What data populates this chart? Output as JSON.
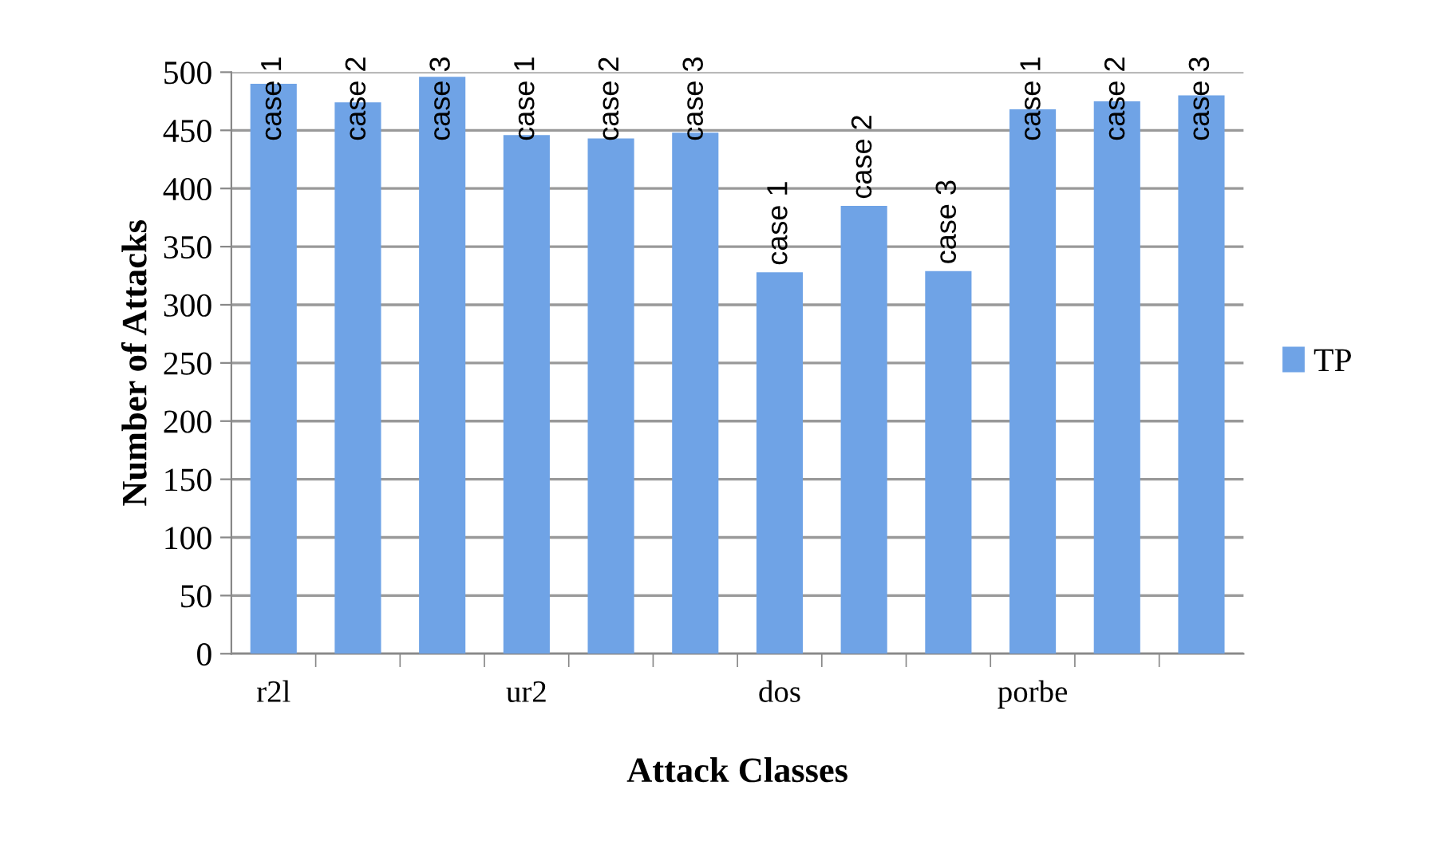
{
  "chart_data": {
    "type": "bar",
    "xlabel": "Attack Classes",
    "ylabel": "Number of Attacks",
    "categories": [
      "r2l",
      null,
      null,
      "ur2",
      null,
      null,
      "dos",
      null,
      null,
      "porbe",
      null,
      null
    ],
    "series": [
      {
        "name": "TP",
        "color": "#6fa3e6",
        "values": [
          490,
          474,
          496,
          446,
          443,
          448,
          328,
          385,
          329,
          468,
          475,
          480
        ],
        "value_labels": [
          "case 1",
          "case 2",
          "case 3",
          "case 1",
          "case 2",
          "case 3",
          "case 1",
          "case 2",
          "case 3",
          "case 1",
          "case 2",
          "case 3"
        ]
      }
    ],
    "ylim": [
      0,
      500
    ],
    "yticks": [
      0,
      50,
      100,
      150,
      200,
      250,
      300,
      350,
      400,
      450,
      500
    ],
    "grid": "y",
    "legend": "right"
  }
}
